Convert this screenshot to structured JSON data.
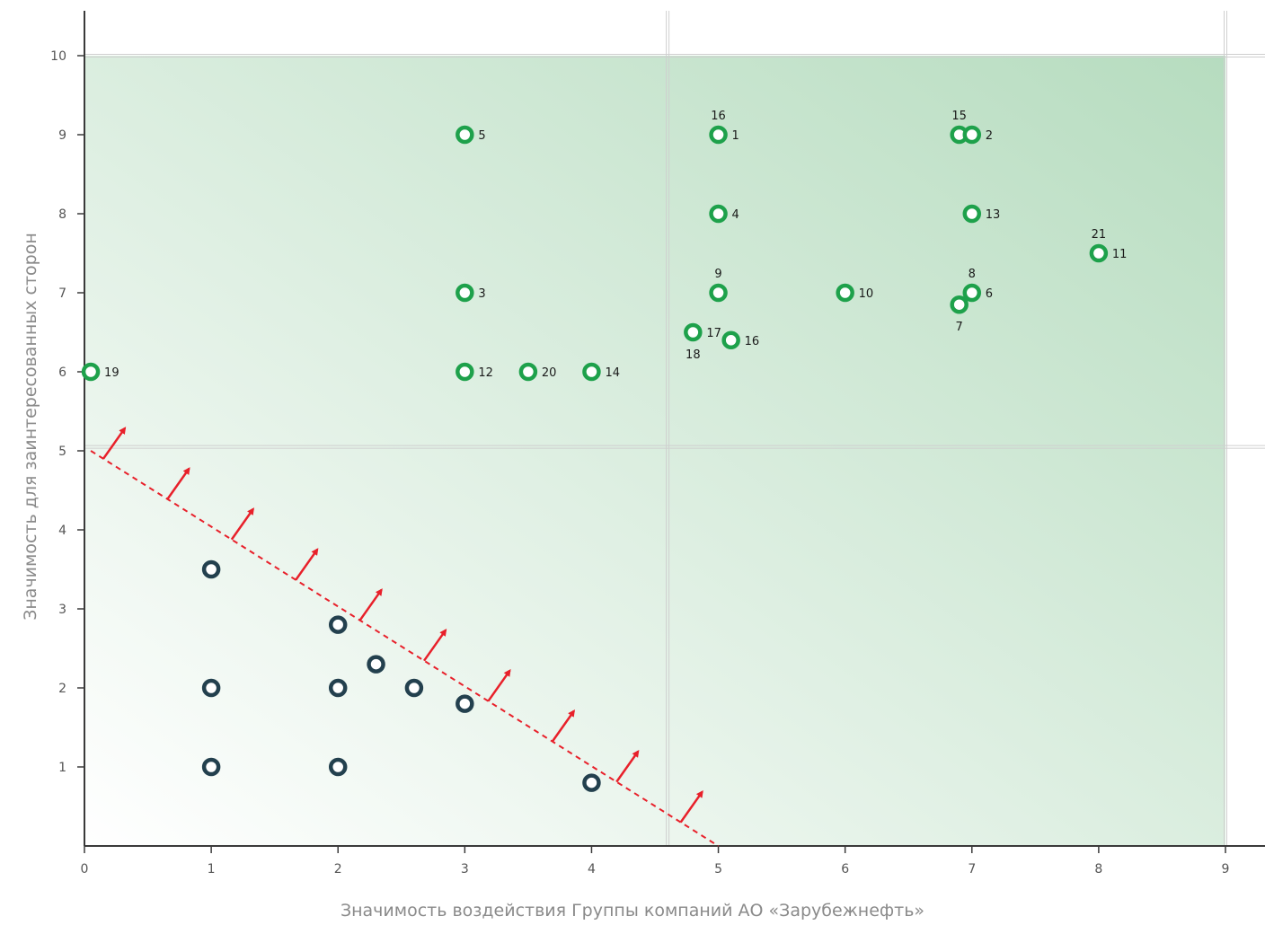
{
  "chart_data": {
    "type": "scatter",
    "xlabel": "Значимость воздействия Группы компаний АО «Зарубежнефть»",
    "ylabel": "Значимость для заинтересованных сторон",
    "xlim": [
      0,
      9
    ],
    "ylim": [
      0,
      10
    ],
    "x_ticks": [
      "0",
      "1",
      "2",
      "3",
      "4",
      "5",
      "6",
      "7",
      "8",
      "9"
    ],
    "y_ticks": [
      "1",
      "2",
      "3",
      "4",
      "5",
      "6",
      "7",
      "8",
      "9",
      "10"
    ],
    "thresholds": {
      "x": 4.6,
      "y": 5.05
    },
    "boundary_line": {
      "from": [
        0.05,
        5.0
      ],
      "to": [
        5.0,
        0.0
      ]
    },
    "colors": {
      "material": "#1ea14b",
      "non_material": "#23404e",
      "boundary": "#e8202a",
      "shading": "#b6dcbf"
    },
    "series": [
      {
        "points": [
          {
            "x": 0.05,
            "y": 6.0,
            "labels": [
              {
                "text": "19",
                "pos": "right"
              }
            ]
          },
          {
            "x": 3.0,
            "y": 9.0,
            "labels": [
              {
                "text": "5",
                "pos": "right"
              }
            ]
          },
          {
            "x": 3.0,
            "y": 7.0,
            "labels": [
              {
                "text": "3",
                "pos": "right"
              }
            ]
          },
          {
            "x": 3.0,
            "y": 6.0,
            "labels": [
              {
                "text": "12",
                "pos": "right"
              }
            ]
          },
          {
            "x": 3.5,
            "y": 6.0,
            "labels": [
              {
                "text": "20",
                "pos": "right"
              }
            ]
          },
          {
            "x": 4.0,
            "y": 6.0,
            "labels": [
              {
                "text": "14",
                "pos": "right"
              }
            ]
          },
          {
            "x": 4.8,
            "y": 6.5,
            "labels": [
              {
                "text": "17",
                "pos": "right"
              },
              {
                "text": "18",
                "pos": "below"
              }
            ]
          },
          {
            "x": 5.0,
            "y": 9.0,
            "labels": [
              {
                "text": "1",
                "pos": "right"
              },
              {
                "text": "16",
                "pos": "above"
              }
            ]
          },
          {
            "x": 5.0,
            "y": 8.0,
            "labels": [
              {
                "text": "4",
                "pos": "right"
              }
            ]
          },
          {
            "x": 5.0,
            "y": 7.0,
            "labels": [
              {
                "text": "9",
                "pos": "above"
              }
            ]
          },
          {
            "x": 5.1,
            "y": 6.4,
            "labels": [
              {
                "text": "16",
                "pos": "right"
              }
            ]
          },
          {
            "x": 6.0,
            "y": 7.0,
            "labels": [
              {
                "text": "10",
                "pos": "right"
              }
            ]
          },
          {
            "x": 6.9,
            "y": 9.0,
            "labels": [
              {
                "text": "15",
                "pos": "above"
              }
            ]
          },
          {
            "x": 7.0,
            "y": 9.0,
            "labels": [
              {
                "text": "2",
                "pos": "right"
              }
            ]
          },
          {
            "x": 7.0,
            "y": 8.0,
            "labels": [
              {
                "text": "13",
                "pos": "right"
              }
            ]
          },
          {
            "x": 7.0,
            "y": 7.0,
            "labels": [
              {
                "text": "6",
                "pos": "right"
              },
              {
                "text": "8",
                "pos": "above"
              }
            ]
          },
          {
            "x": 6.9,
            "y": 6.85,
            "labels": [
              {
                "text": "7",
                "pos": "below"
              }
            ]
          },
          {
            "x": 8.0,
            "y": 7.5,
            "labels": [
              {
                "text": "11",
                "pos": "right"
              },
              {
                "text": "21",
                "pos": "above"
              }
            ]
          }
        ]
      },
      {
        "points": [
          {
            "x": 1.0,
            "y": 3.5
          },
          {
            "x": 1.0,
            "y": 2.0
          },
          {
            "x": 1.0,
            "y": 1.0
          },
          {
            "x": 2.0,
            "y": 2.8
          },
          {
            "x": 2.0,
            "y": 2.0
          },
          {
            "x": 2.0,
            "y": 1.0
          },
          {
            "x": 2.3,
            "y": 2.3
          },
          {
            "x": 2.6,
            "y": 2.0
          },
          {
            "x": 3.0,
            "y": 1.8
          },
          {
            "x": 4.0,
            "y": 0.8
          }
        ]
      }
    ]
  }
}
